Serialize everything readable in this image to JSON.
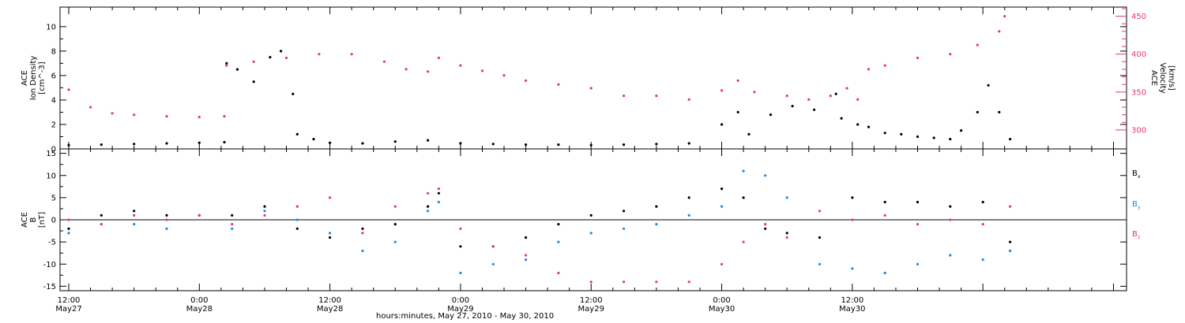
{
  "chart_data": [
    {
      "type": "scatter",
      "panel": "top",
      "ylabel_lines": [
        "ACE",
        "Ion Density",
        "[cm^-3]"
      ],
      "ylim": [
        0,
        11.6
      ],
      "yticks": [
        0,
        2,
        4,
        6,
        8,
        10
      ],
      "ytick_labels": [
        "0",
        "2",
        "4",
        "6",
        "8",
        "10"
      ],
      "right_axis": {
        "ylabel_lines": [
          "ACE",
          "Velocity",
          "[km/s]"
        ],
        "ylim": [
          275,
          462
        ],
        "yticks": [
          300,
          350,
          400,
          450
        ],
        "ytick_labels": [
          "300",
          "350",
          "400",
          "450"
        ],
        "color": "#e8386a"
      },
      "series": [
        {
          "name": "Ion Density",
          "color": "#000000",
          "axis": "left",
          "x": [
            0,
            3,
            6,
            9,
            12,
            14.3,
            14.5,
            15.5,
            17,
            18.5,
            19.5,
            20.6,
            21,
            22.5,
            24,
            27,
            30,
            33,
            36,
            39,
            42,
            45,
            48,
            51,
            54,
            57,
            60,
            61.5,
            62.5,
            64.5,
            66.5,
            68.5,
            70.5,
            71,
            72.5,
            73.5,
            75,
            76.5,
            78,
            79.5,
            81,
            82,
            83.5,
            84.5,
            85.5,
            86.5
          ],
          "y": [
            0.3,
            0.35,
            0.4,
            0.45,
            0.5,
            0.55,
            7,
            6.5,
            5.5,
            7.5,
            8,
            4.5,
            1.2,
            0.8,
            0.5,
            0.45,
            0.6,
            0.7,
            0.45,
            0.4,
            0.35,
            0.35,
            0.3,
            0.35,
            0.4,
            0.45,
            2,
            3,
            1.2,
            2.8,
            3.5,
            3.2,
            4.5,
            2.5,
            2,
            1.8,
            1.3,
            1.2,
            1,
            0.9,
            0.8,
            1.5,
            3,
            5.2,
            3,
            0.8
          ]
        },
        {
          "name": "Velocity",
          "color": "#e8386a",
          "axis": "right",
          "x": [
            0,
            2,
            4,
            6,
            9,
            12,
            14.3,
            14.5,
            17,
            20,
            23,
            26,
            29,
            31,
            33,
            34,
            36,
            38,
            40,
            42,
            45,
            48,
            51,
            54,
            57,
            60,
            61.5,
            63,
            66,
            68,
            70,
            71.5,
            72.5,
            73.5,
            75,
            78,
            81,
            83.5,
            85.5,
            86
          ],
          "y": [
            353,
            330,
            322,
            320,
            318,
            317,
            318,
            385,
            390,
            395,
            400,
            400,
            390,
            380,
            377,
            395,
            385,
            378,
            372,
            365,
            360,
            355,
            345,
            345,
            340,
            352,
            365,
            350,
            345,
            340,
            345,
            355,
            340,
            380,
            385,
            395,
            400,
            412,
            430,
            450
          ]
        }
      ]
    },
    {
      "type": "scatter",
      "panel": "bottom",
      "ylabel_lines": [
        "ACE",
        "B",
        "[nT]"
      ],
      "ylim": [
        -16,
        16
      ],
      "yticks": [
        -15,
        -10,
        -5,
        0,
        5,
        10,
        15
      ],
      "ytick_labels": [
        "-15",
        "-10",
        "-5",
        "0",
        "5",
        "10",
        "15"
      ],
      "zero_line": true,
      "series": [
        {
          "name": "Bx",
          "label_main": "B",
          "label_sub": "x",
          "color": "#000000",
          "x": [
            0,
            3,
            6,
            9,
            12,
            15,
            18,
            21,
            24,
            27,
            30,
            33,
            34,
            36,
            39,
            42,
            45,
            48,
            51,
            54,
            57,
            60,
            62,
            64,
            66,
            69,
            72,
            75,
            78,
            81,
            84,
            86.5
          ],
          "y": [
            -2,
            1,
            2,
            1,
            1,
            1,
            3,
            -2,
            -4,
            -2,
            -1,
            3,
            6,
            -6,
            -6,
            -4,
            -1,
            1,
            2,
            3,
            5,
            7,
            5,
            -2,
            -3,
            -4,
            5,
            4,
            4,
            3,
            4,
            -5
          ]
        },
        {
          "name": "By",
          "label_main": "B",
          "label_sub": "y",
          "color": "#2288dd",
          "x": [
            0,
            3,
            6,
            9,
            12,
            15,
            18,
            21,
            24,
            27,
            30,
            33,
            34,
            36,
            39,
            42,
            45,
            48,
            51,
            54,
            57,
            60,
            62,
            64,
            66,
            69,
            72,
            75,
            78,
            81,
            84,
            86.5
          ],
          "y": [
            -3,
            -1,
            -1,
            -2,
            1,
            -2,
            2,
            0,
            -3,
            -7,
            -5,
            2,
            4,
            -12,
            -10,
            -9,
            -5,
            -3,
            -2,
            -1,
            1,
            3,
            11,
            10,
            5,
            -10,
            -11,
            -12,
            -10,
            -8,
            -9,
            -7
          ]
        },
        {
          "name": "Bz",
          "label_main": "B",
          "label_sub": "z",
          "color": "#e8386a",
          "x": [
            0,
            3,
            6,
            9,
            12,
            15,
            18,
            21,
            24,
            27,
            30,
            33,
            34,
            36,
            39,
            42,
            45,
            48,
            51,
            54,
            57,
            60,
            62,
            64,
            66,
            69,
            72,
            75,
            78,
            81,
            84,
            86.5
          ],
          "y": [
            0,
            -1,
            1,
            0,
            1,
            -1,
            1,
            3,
            5,
            -3,
            3,
            6,
            7,
            -2,
            -6,
            -8,
            -12,
            -14,
            -14,
            -14,
            -14,
            -10,
            -5,
            -1,
            -4,
            2,
            0,
            1,
            -1,
            0,
            -1,
            3
          ]
        }
      ]
    }
  ],
  "xaxis": {
    "title": "hours:minutes, May 27, 2010 - May 30, 2010",
    "xlim": [
      -0.8,
      97.2
    ],
    "major_ticks": [
      0,
      12,
      24,
      36,
      48,
      60,
      72,
      84,
      96
    ],
    "tick_time_labels": [
      "12:00",
      "0:00",
      "12:00",
      "0:00",
      "12:00",
      "0:00",
      "12:00"
    ],
    "tick_date_labels": [
      "May27",
      "May28",
      "May28",
      "May29",
      "May29",
      "May30",
      "May30"
    ]
  }
}
